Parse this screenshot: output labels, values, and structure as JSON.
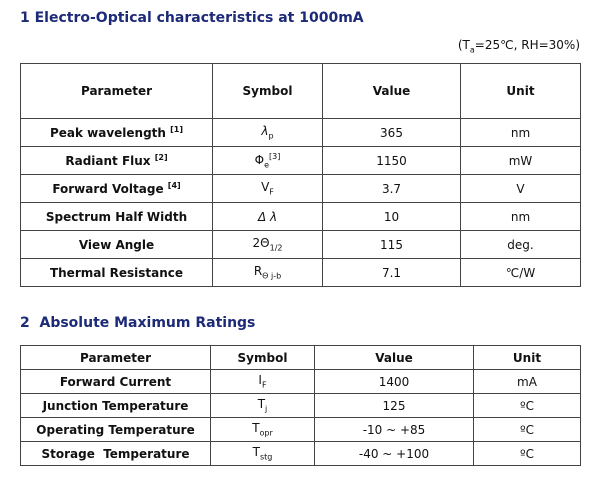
{
  "section1": {
    "title": "1 Electro-Optical characteristics at 1000mA",
    "conditions": {
      "pre": "(T",
      "sub": "a",
      "post": "=25℃, RH=30%)"
    },
    "table": {
      "header": [
        "Parameter",
        "Symbol",
        "Value",
        "Unit"
      ],
      "rows": [
        {
          "parameter": {
            "text": "Peak wavelength",
            "sup": "[1]"
          },
          "symbol": {
            "base": "λ",
            "sub": "p",
            "italic": true
          },
          "value": 365,
          "unit": "nm"
        },
        {
          "parameter": {
            "text": "Radiant Flux",
            "sup": "[2]"
          },
          "symbol": {
            "base": "Φ",
            "sub": "e",
            "sup": "[3]"
          },
          "value": 1150,
          "unit": "mW"
        },
        {
          "parameter": {
            "text": "Forward Voltage",
            "sup": "[4]"
          },
          "symbol": {
            "base": "V",
            "sub": "F"
          },
          "value": 3.7,
          "unit": "V"
        },
        {
          "parameter": {
            "text": "Spectrum Half Width"
          },
          "symbol": {
            "base": "Δ λ",
            "italic": true
          },
          "value": 10,
          "unit": "nm"
        },
        {
          "parameter": {
            "text": "View Angle"
          },
          "symbol": {
            "base": "2Θ",
            "sub": "1/2"
          },
          "value": 115,
          "unit": "deg."
        },
        {
          "parameter": {
            "text": "Thermal Resistance"
          },
          "symbol": {
            "base": "R",
            "sub": "Θ j-b"
          },
          "value": 7.1,
          "unit": "℃/W"
        }
      ]
    }
  },
  "section2": {
    "title": "2  Absolute Maximum Ratings",
    "table": {
      "header": [
        "Parameter",
        "Symbol",
        "Value",
        "Unit"
      ],
      "rows": [
        {
          "parameter": {
            "text": "Forward Current"
          },
          "symbol": {
            "base": "I",
            "sub": "F"
          },
          "value": 1400,
          "unit": "mA"
        },
        {
          "parameter": {
            "text": "Junction Temperature"
          },
          "symbol": {
            "base": "T",
            "sub": "j"
          },
          "value": 125,
          "unit": "ºC"
        },
        {
          "parameter": {
            "text": "Operating Temperature"
          },
          "symbol": {
            "base": "T",
            "sub": "opr"
          },
          "value": "-10 ~ +85",
          "unit": "ºC"
        },
        {
          "parameter": {
            "text": "Storage  Temperature"
          },
          "symbol": {
            "base": "T",
            "sub": "stg"
          },
          "value": "-40 ~ +100",
          "unit": "ºC"
        }
      ]
    }
  }
}
